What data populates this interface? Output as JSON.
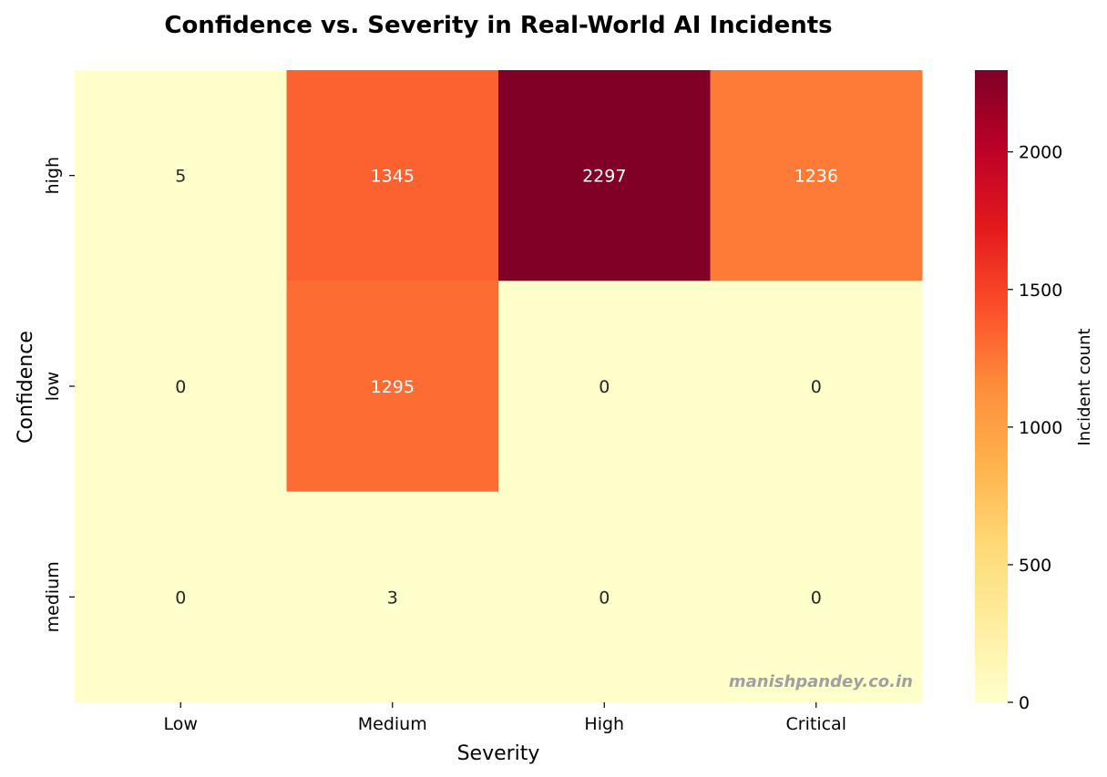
{
  "chart_data": {
    "type": "heatmap",
    "title": "Confidence vs. Severity in Real-World AI Incidents",
    "xlabel": "Severity",
    "ylabel": "Confidence",
    "x_categories": [
      "Low",
      "Medium",
      "High",
      "Critical"
    ],
    "y_categories": [
      "high",
      "low",
      "medium"
    ],
    "values": [
      [
        5,
        1345,
        2297,
        1236
      ],
      [
        0,
        1295,
        0,
        0
      ],
      [
        0,
        3,
        0,
        0
      ]
    ],
    "colorbar": {
      "label": "Incident count",
      "range": [
        0,
        2297
      ],
      "ticks": [
        0,
        500,
        1000,
        1500,
        2000
      ]
    },
    "colormap": [
      "#ffffcc",
      "#ffeda0",
      "#fed976",
      "#feb24c",
      "#fd8d3c",
      "#fc4e2a",
      "#e31a1c",
      "#bd0026",
      "#800026"
    ],
    "watermark": "manishpandey.co.in"
  }
}
